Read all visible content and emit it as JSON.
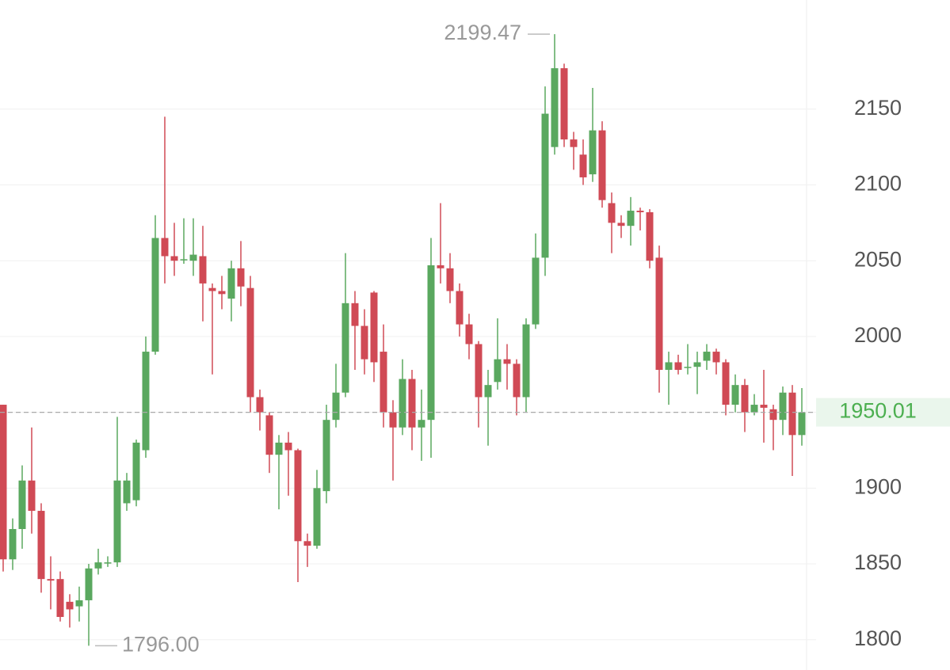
{
  "chart_data": {
    "type": "candlestick",
    "ylim": [
      1780,
      2222
    ],
    "yticks": [
      1800,
      1850,
      1900,
      1950,
      2000,
      2050,
      2100,
      2150
    ],
    "grid": true,
    "up_color": "#5aa85f",
    "down_color": "#d04a55",
    "open": [
      1955,
      1853,
      1873,
      1905,
      1885,
      1840,
      1840,
      1825,
      1822,
      1826,
      1847,
      1851,
      1851,
      1890,
      1892,
      1925,
      1990,
      2065,
      2053,
      2051,
      2050,
      2053,
      2032,
      2030,
      2025,
      2045,
      2032,
      1960,
      1948,
      1922,
      1930,
      1925,
      1865,
      1862,
      1898,
      1945,
      1963,
      2022,
      2007,
      2029,
      1990,
      1950,
      1940,
      1972,
      1940,
      1945,
      2047,
      2045,
      2030,
      2008,
      1995,
      1960,
      1970,
      1985,
      1982,
      1960,
      2008,
      2052,
      2125,
      2177,
      2130,
      2120,
      2107,
      2136,
      2088,
      2075,
      2073,
      2083,
      2082,
      2052,
      1978,
      1983,
      1980,
      1980,
      1984,
      1990,
      1983,
      1955,
      1968,
      1950,
      1955,
      1952,
      1945,
      1963,
      1935
    ],
    "high": [
      1955,
      1880,
      1915,
      1940,
      1890,
      1855,
      1845,
      1830,
      1835,
      1850,
      1860,
      1855,
      1947,
      1910,
      1932,
      2000,
      2080,
      2145,
      2075,
      2078,
      2078,
      2073,
      2035,
      2040,
      2050,
      2063,
      2040,
      1965,
      1950,
      1935,
      1937,
      1926,
      1870,
      1912,
      1955,
      1982,
      2055,
      2030,
      2018,
      2030,
      2008,
      1958,
      1985,
      1978,
      1965,
      2065,
      2088,
      2055,
      2035,
      2015,
      1997,
      1978,
      2012,
      1995,
      1985,
      2012,
      2068,
      2165,
      2199.47,
      2180,
      2135,
      2130,
      2164,
      2142,
      2095,
      2080,
      2092,
      2085,
      2084,
      2060,
      1990,
      1988,
      1995,
      1990,
      1995,
      1992,
      1985,
      1975,
      1972,
      1962,
      1978,
      1955,
      1967,
      1968,
      1966
    ],
    "low": [
      1845,
      1846,
      1860,
      1870,
      1831,
      1820,
      1812,
      1808,
      1812,
      1796,
      1843,
      1848,
      1848,
      1885,
      1888,
      1920,
      1988,
      2035,
      2040,
      2048,
      2040,
      2010,
      1975,
      2018,
      2010,
      2020,
      1950,
      1938,
      1910,
      1886,
      1895,
      1838,
      1848,
      1860,
      1890,
      1940,
      1960,
      1978,
      1975,
      1970,
      1940,
      1905,
      1935,
      1925,
      1918,
      1920,
      2035,
      2022,
      2000,
      1985,
      1940,
      1928,
      1965,
      1965,
      1948,
      1950,
      2005,
      2040,
      2120,
      2125,
      2110,
      2100,
      2102,
      2085,
      2055,
      2065,
      2060,
      2070,
      2045,
      1963,
      1955,
      1975,
      1975,
      1962,
      1978,
      1975,
      1948,
      1950,
      1937,
      1948,
      1930,
      1925,
      1935,
      1908,
      1928
    ],
    "close": [
      1853,
      1873,
      1905,
      1885,
      1840,
      1839,
      1815,
      1820,
      1826,
      1847,
      1851,
      1851,
      1905,
      1905,
      1930,
      1990,
      2065,
      2053,
      2050,
      2051,
      2054,
      2035,
      2030,
      2028,
      2045,
      2033,
      1960,
      1950,
      1922,
      1930,
      1925,
      1865,
      1862,
      1900,
      1945,
      1963,
      2022,
      2007,
      1985,
      1983,
      1950,
      1940,
      1972,
      1940,
      1945,
      2047,
      2045,
      2030,
      2008,
      1995,
      1960,
      1968,
      1985,
      1982,
      1960,
      2008,
      2052,
      2147,
      2177,
      2130,
      2125,
      2105,
      2136,
      2090,
      2075,
      2073,
      2083,
      2082,
      2050,
      1978,
      1983,
      1978,
      1980,
      1983,
      1990,
      1983,
      1955,
      1968,
      1950,
      1955,
      1953,
      1945,
      1963,
      1935,
      1950.01
    ],
    "annotations": [
      {
        "value": 2199.47,
        "label": "2199.47"
      },
      {
        "value": 1796,
        "label": "1796.00"
      },
      {
        "value": 1950.01,
        "label": "1950.01"
      }
    ]
  }
}
